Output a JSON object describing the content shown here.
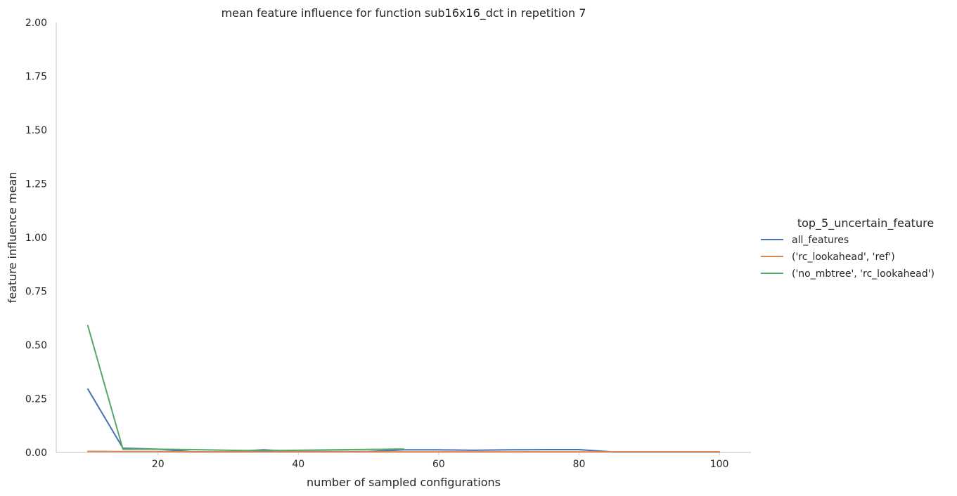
{
  "chart_data": {
    "type": "line",
    "title": "mean feature influence for function sub16x16_dct in repetition 7",
    "xlabel": "number of sampled configurations",
    "ylabel": "feature influence mean",
    "xlim": [
      5.5,
      104.5
    ],
    "ylim": [
      0,
      2.0
    ],
    "xticks": [
      20,
      40,
      60,
      80,
      100
    ],
    "yticks": [
      0.0,
      0.25,
      0.5,
      0.75,
      1.0,
      1.25,
      1.5,
      1.75,
      2.0
    ],
    "xtick_labels": [
      "20",
      "40",
      "60",
      "80",
      "100"
    ],
    "ytick_labels": [
      "0.00",
      "0.25",
      "0.50",
      "0.75",
      "1.00",
      "1.25",
      "1.50",
      "1.75",
      "2.00"
    ],
    "grid": false,
    "legend": {
      "title": "top_5_uncertain_feature",
      "placement": "right"
    },
    "series": [
      {
        "name": "all_features",
        "color": "#4c72b0",
        "x": [
          10,
          15,
          20,
          25,
          30,
          35,
          40,
          45,
          50,
          55,
          60,
          65,
          70,
          75,
          80,
          85,
          90,
          95,
          100
        ],
        "y": [
          0.295,
          0.02,
          0.015,
          0.003,
          0.003,
          0.012,
          0.004,
          0.004,
          0.004,
          0.012,
          0.012,
          0.01,
          0.012,
          0.013,
          0.013,
          0.002,
          0.002,
          0.002,
          0.002
        ]
      },
      {
        "name": "('rc_lookahead', 'ref')",
        "color": "#dd8452",
        "x": [
          10,
          15,
          20,
          25,
          30,
          35,
          40,
          45,
          50,
          55,
          60,
          65,
          70,
          75,
          80,
          85,
          90,
          95,
          100
        ],
        "y": [
          0.005,
          0.004,
          0.004,
          0.003,
          0.003,
          0.003,
          0.003,
          0.003,
          0.003,
          0.003,
          0.003,
          0.003,
          0.003,
          0.003,
          0.003,
          0.003,
          0.003,
          0.003,
          0.003
        ]
      },
      {
        "name": "('no_mbtree', 'rc_lookahead')",
        "color": "#55a868",
        "x": [
          10,
          15,
          20,
          25,
          30,
          35,
          40,
          45,
          50,
          55
        ],
        "y": [
          0.59,
          0.015,
          0.015,
          0.013,
          0.01,
          0.008,
          0.01,
          0.012,
          0.014,
          0.016
        ]
      }
    ]
  }
}
